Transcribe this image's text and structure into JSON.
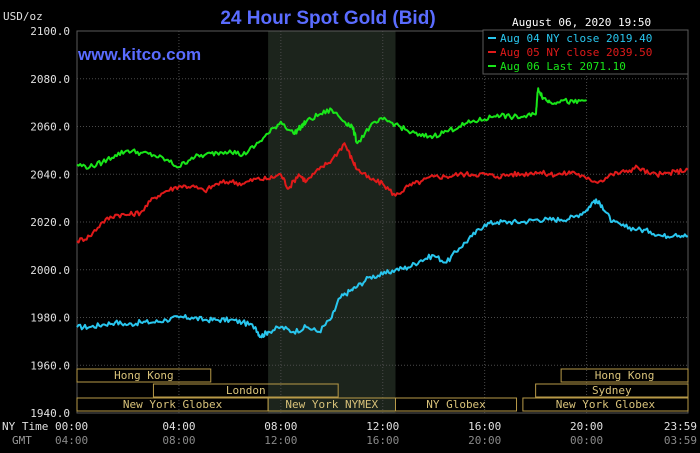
{
  "header": {
    "unit": "USD/oz",
    "title": "24 Hour Spot Gold (Bid)",
    "datetime": "August 06, 2020 19:50",
    "watermark": "www.kitco.com"
  },
  "colors": {
    "background": "#000000",
    "title": "#5a6cff",
    "text": "#ffffff",
    "axis_text": "#e0e0e0",
    "grid": "#4a4a4a",
    "ny_shade": "#1c241c",
    "market_bar": "#b89a48",
    "aug04": "#29c6ee",
    "aug05": "#e01a1a",
    "aug06": "#19e619"
  },
  "legend": [
    {
      "label": "Aug 04 NY close 2019.40",
      "color": "#29c6ee"
    },
    {
      "label": "Aug 05 NY close 2039.50",
      "color": "#e01a1a"
    },
    {
      "label": "Aug 06 Last 2071.10",
      "color": "#19e619"
    }
  ],
  "time_axis": {
    "ny_label": "NY Time",
    "gmt_label": "GMT",
    "ny_ticks": [
      "00:00",
      "04:00",
      "08:00",
      "12:00",
      "16:00",
      "20:00",
      "23:59"
    ],
    "gmt_ticks": [
      "04:00",
      "08:00",
      "12:00",
      "16:00",
      "20:00",
      "00:00",
      "03:59"
    ]
  },
  "markets": [
    {
      "label": "Hong Kong",
      "row": 1,
      "start": 0.0,
      "end": 5.25
    },
    {
      "label": "London",
      "row": 2,
      "start": 3.0,
      "end": 10.25
    },
    {
      "label": "New York Globex",
      "row": 3,
      "start": 0.0,
      "end": 7.5
    },
    {
      "label": "New York NYMEX",
      "row": 3,
      "start": 7.5,
      "end": 12.5
    },
    {
      "label": "NY Globex",
      "row": 3,
      "start": 12.5,
      "end": 17.25
    },
    {
      "label": "Hong Kong",
      "row": 1,
      "start": 19.0,
      "end": 23.98
    },
    {
      "label": "Sydney",
      "row": 2,
      "start": 18.0,
      "end": 23.98
    },
    {
      "label": "New York Globex",
      "row": 3,
      "start": 17.5,
      "end": 23.98
    }
  ],
  "chart_data": {
    "type": "line",
    "title": "24 Hour Spot Gold (Bid)",
    "ylabel": "USD/oz",
    "xlabel": "NY Time",
    "ylim": [
      1940,
      2100
    ],
    "xlim": [
      0,
      23.98
    ],
    "y_ticks": [
      "1940.0",
      "1960.0",
      "1980.0",
      "2000.0",
      "2020.0",
      "2040.0",
      "2060.0",
      "2080.0",
      "2100.0"
    ],
    "shaded_region": {
      "x": [
        7.5,
        12.5
      ]
    },
    "grid": true,
    "legend_position": "top-right",
    "series": [
      {
        "name": "Aug 04 NY close 2019.40",
        "color": "#29c6ee",
        "x": [
          0,
          0.5,
          1,
          1.5,
          2,
          2.5,
          3,
          3.5,
          4,
          4.5,
          5,
          5.5,
          6,
          6.5,
          7,
          7.2,
          7.5,
          8,
          8.5,
          9,
          9.5,
          10,
          10.3,
          10.7,
          11,
          11.5,
          12,
          12.5,
          13,
          13.5,
          14,
          14.5,
          15,
          15.5,
          16,
          16.5,
          17,
          17.5,
          18,
          18.5,
          19,
          19.5,
          20,
          20.3,
          20.6,
          21,
          21.5,
          22,
          22.5,
          23,
          23.5,
          23.98
        ],
        "values": [
          1976,
          1976,
          1977,
          1978,
          1977,
          1978,
          1978,
          1979,
          1980,
          1980,
          1979,
          1979,
          1979,
          1978,
          1976,
          1972,
          1974,
          1976,
          1974,
          1976,
          1974,
          1980,
          1988,
          1991,
          1993,
          1997,
          1998,
          2000,
          2001,
          2004,
          2006,
          2003,
          2009,
          2014,
          2019,
          2020,
          2020,
          2020,
          2021,
          2021,
          2021,
          2022,
          2025,
          2029,
          2027,
          2020,
          2018,
          2017,
          2016,
          2014,
          2015,
          2014
        ]
      },
      {
        "name": "Aug 05 NY close 2039.50",
        "color": "#e01a1a",
        "x": [
          0,
          0.5,
          1,
          1.5,
          2,
          2.5,
          3,
          3.5,
          4,
          4.5,
          5,
          5.5,
          6,
          6.5,
          7,
          7.5,
          8,
          8.3,
          8.7,
          9,
          9.5,
          10,
          10.5,
          10.8,
          11,
          11.5,
          12,
          12.5,
          13,
          13.5,
          14,
          14.5,
          15,
          15.5,
          16,
          16.5,
          17,
          17.5,
          18,
          18.5,
          19,
          19.5,
          20,
          20.5,
          21,
          21.5,
          22,
          22.5,
          23,
          23.5,
          23.98
        ],
        "values": [
          2012,
          2014,
          2020,
          2023,
          2023,
          2024,
          2030,
          2033,
          2035,
          2035,
          2033,
          2036,
          2037,
          2036,
          2038,
          2038,
          2040,
          2034,
          2040,
          2037,
          2042,
          2046,
          2053,
          2046,
          2042,
          2038,
          2036,
          2031,
          2035,
          2037,
          2039,
          2039,
          2040,
          2040,
          2040,
          2039,
          2040,
          2040,
          2041,
          2040,
          2040,
          2041,
          2038,
          2037,
          2040,
          2041,
          2043,
          2040,
          2040,
          2041,
          2042
        ]
      },
      {
        "name": "Aug 06 Last 2071.10",
        "color": "#19e619",
        "x": [
          0,
          0.5,
          1,
          1.5,
          2,
          2.5,
          3,
          3.5,
          4,
          4.5,
          5,
          5.5,
          6,
          6.5,
          7,
          7.5,
          8,
          8.5,
          8.8,
          9,
          9.5,
          10,
          10.5,
          10.8,
          11,
          11.5,
          12,
          12.5,
          13,
          13.5,
          14,
          14.5,
          15,
          15.5,
          16,
          16.5,
          17,
          17.5,
          18,
          18.1,
          18.3,
          18.6,
          19,
          19.5,
          20
        ],
        "values": [
          2044,
          2043,
          2045,
          2048,
          2050,
          2049,
          2048,
          2046,
          2043,
          2047,
          2048,
          2049,
          2050,
          2048,
          2052,
          2057,
          2062,
          2057,
          2060,
          2062,
          2065,
          2067,
          2062,
          2060,
          2053,
          2060,
          2063,
          2061,
          2058,
          2056,
          2056,
          2058,
          2060,
          2062,
          2063,
          2065,
          2064,
          2064,
          2065,
          2076,
          2072,
          2070,
          2071,
          2070,
          2071
        ]
      }
    ]
  }
}
